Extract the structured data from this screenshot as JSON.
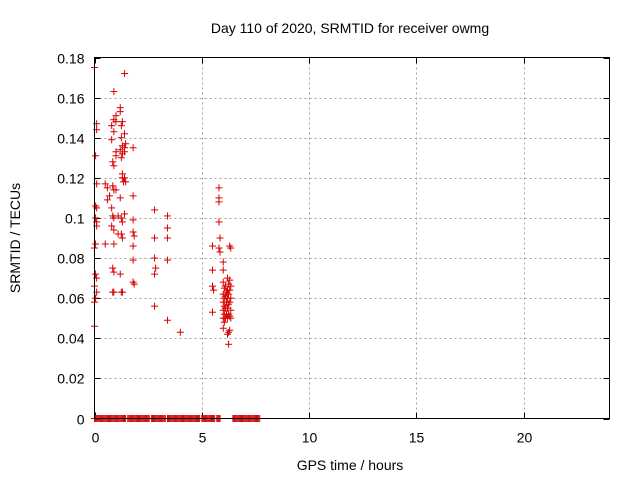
{
  "chart_data": {
    "type": "scatter",
    "title": "Day 110 of 2020, SRMTID for receiver owmg",
    "xlabel": "GPS time / hours",
    "ylabel": "SRMTID / TECUs",
    "xlim": [
      0,
      24
    ],
    "ylim": [
      0,
      0.18
    ],
    "x_ticks": [
      0,
      5,
      10,
      15,
      20
    ],
    "x_tick_labels": [
      "0",
      "5",
      "10",
      "15",
      "20"
    ],
    "y_ticks": [
      0,
      0.02,
      0.04,
      0.06,
      0.08,
      0.1,
      0.12,
      0.14,
      0.16,
      0.18
    ],
    "y_tick_labels": [
      "0",
      "0.02",
      "0.04",
      "0.06",
      "0.08",
      "0.1",
      "0.12",
      "0.14",
      "0.16",
      "0.18"
    ],
    "grid": true,
    "marker": "+",
    "marker_color": "#d40000",
    "series": [
      {
        "points": [
          [
            0.0,
            0.175
          ],
          [
            0.1,
            0.147
          ],
          [
            0.1,
            0.144
          ],
          [
            0.05,
            0.131
          ],
          [
            0.1,
            0.117
          ],
          [
            0.05,
            0.106
          ],
          [
            0.1,
            0.105
          ],
          [
            0.05,
            0.1
          ],
          [
            0.1,
            0.098
          ],
          [
            0.1,
            0.096
          ],
          [
            0.05,
            0.087
          ],
          [
            0.0,
            0.085
          ],
          [
            0.05,
            0.072
          ],
          [
            0.1,
            0.07
          ],
          [
            0.0,
            0.066
          ],
          [
            0.1,
            0.063
          ],
          [
            0.05,
            0.06
          ],
          [
            0.0,
            0.058
          ],
          [
            0.0,
            0.046
          ],
          [
            0.5,
            0.117
          ],
          [
            0.6,
            0.115
          ],
          [
            0.6,
            0.109
          ],
          [
            0.5,
            0.087
          ],
          [
            0.7,
            0.111
          ],
          [
            0.8,
            0.146
          ],
          [
            0.8,
            0.139
          ],
          [
            0.9,
            0.163
          ],
          [
            0.9,
            0.149
          ],
          [
            0.9,
            0.143
          ],
          [
            0.85,
            0.128
          ],
          [
            0.9,
            0.126
          ],
          [
            0.85,
            0.116
          ],
          [
            0.9,
            0.114
          ],
          [
            0.8,
            0.105
          ],
          [
            0.85,
            0.101
          ],
          [
            0.9,
            0.1
          ],
          [
            0.8,
            0.096
          ],
          [
            0.9,
            0.094
          ],
          [
            0.9,
            0.087
          ],
          [
            0.85,
            0.075
          ],
          [
            0.9,
            0.073
          ],
          [
            0.85,
            0.063
          ],
          [
            0.9,
            0.063
          ],
          [
            1.0,
            0.151
          ],
          [
            1.0,
            0.148
          ],
          [
            1.0,
            0.133
          ],
          [
            1.0,
            0.131
          ],
          [
            1.0,
            0.114
          ],
          [
            1.1,
            0.101
          ],
          [
            1.1,
            0.092
          ],
          [
            1.2,
            0.155
          ],
          [
            1.2,
            0.153
          ],
          [
            1.25,
            0.146
          ],
          [
            1.3,
            0.148
          ],
          [
            1.25,
            0.14
          ],
          [
            1.3,
            0.136
          ],
          [
            1.2,
            0.134
          ],
          [
            1.3,
            0.132
          ],
          [
            1.25,
            0.13
          ],
          [
            1.3,
            0.122
          ],
          [
            1.3,
            0.12
          ],
          [
            1.35,
            0.118
          ],
          [
            1.2,
            0.11
          ],
          [
            1.25,
            0.1
          ],
          [
            1.3,
            0.098
          ],
          [
            1.25,
            0.092
          ],
          [
            1.3,
            0.09
          ],
          [
            1.2,
            0.072
          ],
          [
            1.25,
            0.063
          ],
          [
            1.3,
            0.063
          ],
          [
            1.4,
            0.172
          ],
          [
            1.4,
            0.142
          ],
          [
            1.45,
            0.137
          ],
          [
            1.4,
            0.135
          ],
          [
            1.4,
            0.133
          ],
          [
            1.4,
            0.12
          ],
          [
            1.45,
            0.118
          ],
          [
            1.4,
            0.102
          ],
          [
            1.8,
            0.135
          ],
          [
            1.8,
            0.111
          ],
          [
            1.8,
            0.099
          ],
          [
            1.8,
            0.093
          ],
          [
            1.85,
            0.091
          ],
          [
            1.8,
            0.086
          ],
          [
            1.8,
            0.079
          ],
          [
            1.8,
            0.068
          ],
          [
            1.85,
            0.067
          ],
          [
            2.8,
            0.104
          ],
          [
            2.8,
            0.09
          ],
          [
            2.8,
            0.08
          ],
          [
            2.85,
            0.075
          ],
          [
            2.8,
            0.072
          ],
          [
            2.8,
            0.056
          ],
          [
            3.4,
            0.101
          ],
          [
            3.4,
            0.095
          ],
          [
            3.4,
            0.09
          ],
          [
            3.4,
            0.079
          ],
          [
            3.4,
            0.049
          ],
          [
            4.0,
            0.043
          ],
          [
            5.5,
            0.086
          ],
          [
            5.5,
            0.074
          ],
          [
            5.5,
            0.066
          ],
          [
            5.55,
            0.064
          ],
          [
            5.5,
            0.053
          ],
          [
            5.8,
            0.115
          ],
          [
            5.8,
            0.11
          ],
          [
            5.8,
            0.108
          ],
          [
            5.8,
            0.098
          ],
          [
            5.85,
            0.09
          ],
          [
            5.8,
            0.085
          ],
          [
            5.85,
            0.083
          ],
          [
            6.0,
            0.078
          ],
          [
            6.0,
            0.074
          ],
          [
            6.0,
            0.068
          ],
          [
            6.05,
            0.065
          ],
          [
            6.0,
            0.062
          ],
          [
            6.05,
            0.06
          ],
          [
            6.0,
            0.058
          ],
          [
            6.05,
            0.056
          ],
          [
            6.0,
            0.054
          ],
          [
            6.05,
            0.052
          ],
          [
            6.0,
            0.05
          ],
          [
            6.05,
            0.048
          ],
          [
            6.0,
            0.045
          ],
          [
            6.1,
            0.066
          ],
          [
            6.15,
            0.063
          ],
          [
            6.1,
            0.061
          ],
          [
            6.15,
            0.058
          ],
          [
            6.1,
            0.055
          ],
          [
            6.15,
            0.052
          ],
          [
            6.1,
            0.05
          ],
          [
            6.2,
            0.07
          ],
          [
            6.25,
            0.067
          ],
          [
            6.2,
            0.064
          ],
          [
            6.25,
            0.062
          ],
          [
            6.2,
            0.06
          ],
          [
            6.25,
            0.057
          ],
          [
            6.2,
            0.055
          ],
          [
            6.25,
            0.052
          ],
          [
            6.2,
            0.05
          ],
          [
            6.25,
            0.043
          ],
          [
            6.2,
            0.042
          ],
          [
            6.25,
            0.037
          ],
          [
            6.3,
            0.086
          ],
          [
            6.35,
            0.085
          ],
          [
            6.3,
            0.069
          ],
          [
            6.35,
            0.066
          ],
          [
            6.3,
            0.064
          ],
          [
            6.35,
            0.06
          ],
          [
            6.3,
            0.058
          ],
          [
            6.35,
            0.054
          ],
          [
            6.3,
            0.051
          ],
          [
            6.35,
            0.05
          ],
          [
            6.3,
            0.044
          ]
        ],
        "zero_ranges": [
          [
            0.0,
            0.8
          ],
          [
            0.85,
            1.05
          ],
          [
            1.1,
            1.45
          ],
          [
            1.55,
            2.55
          ],
          [
            2.65,
            3.3
          ],
          [
            3.4,
            4.9
          ],
          [
            5.0,
            5.15
          ],
          [
            5.2,
            5.6
          ],
          [
            5.7,
            5.85
          ],
          [
            6.45,
            7.7
          ]
        ]
      }
    ]
  }
}
